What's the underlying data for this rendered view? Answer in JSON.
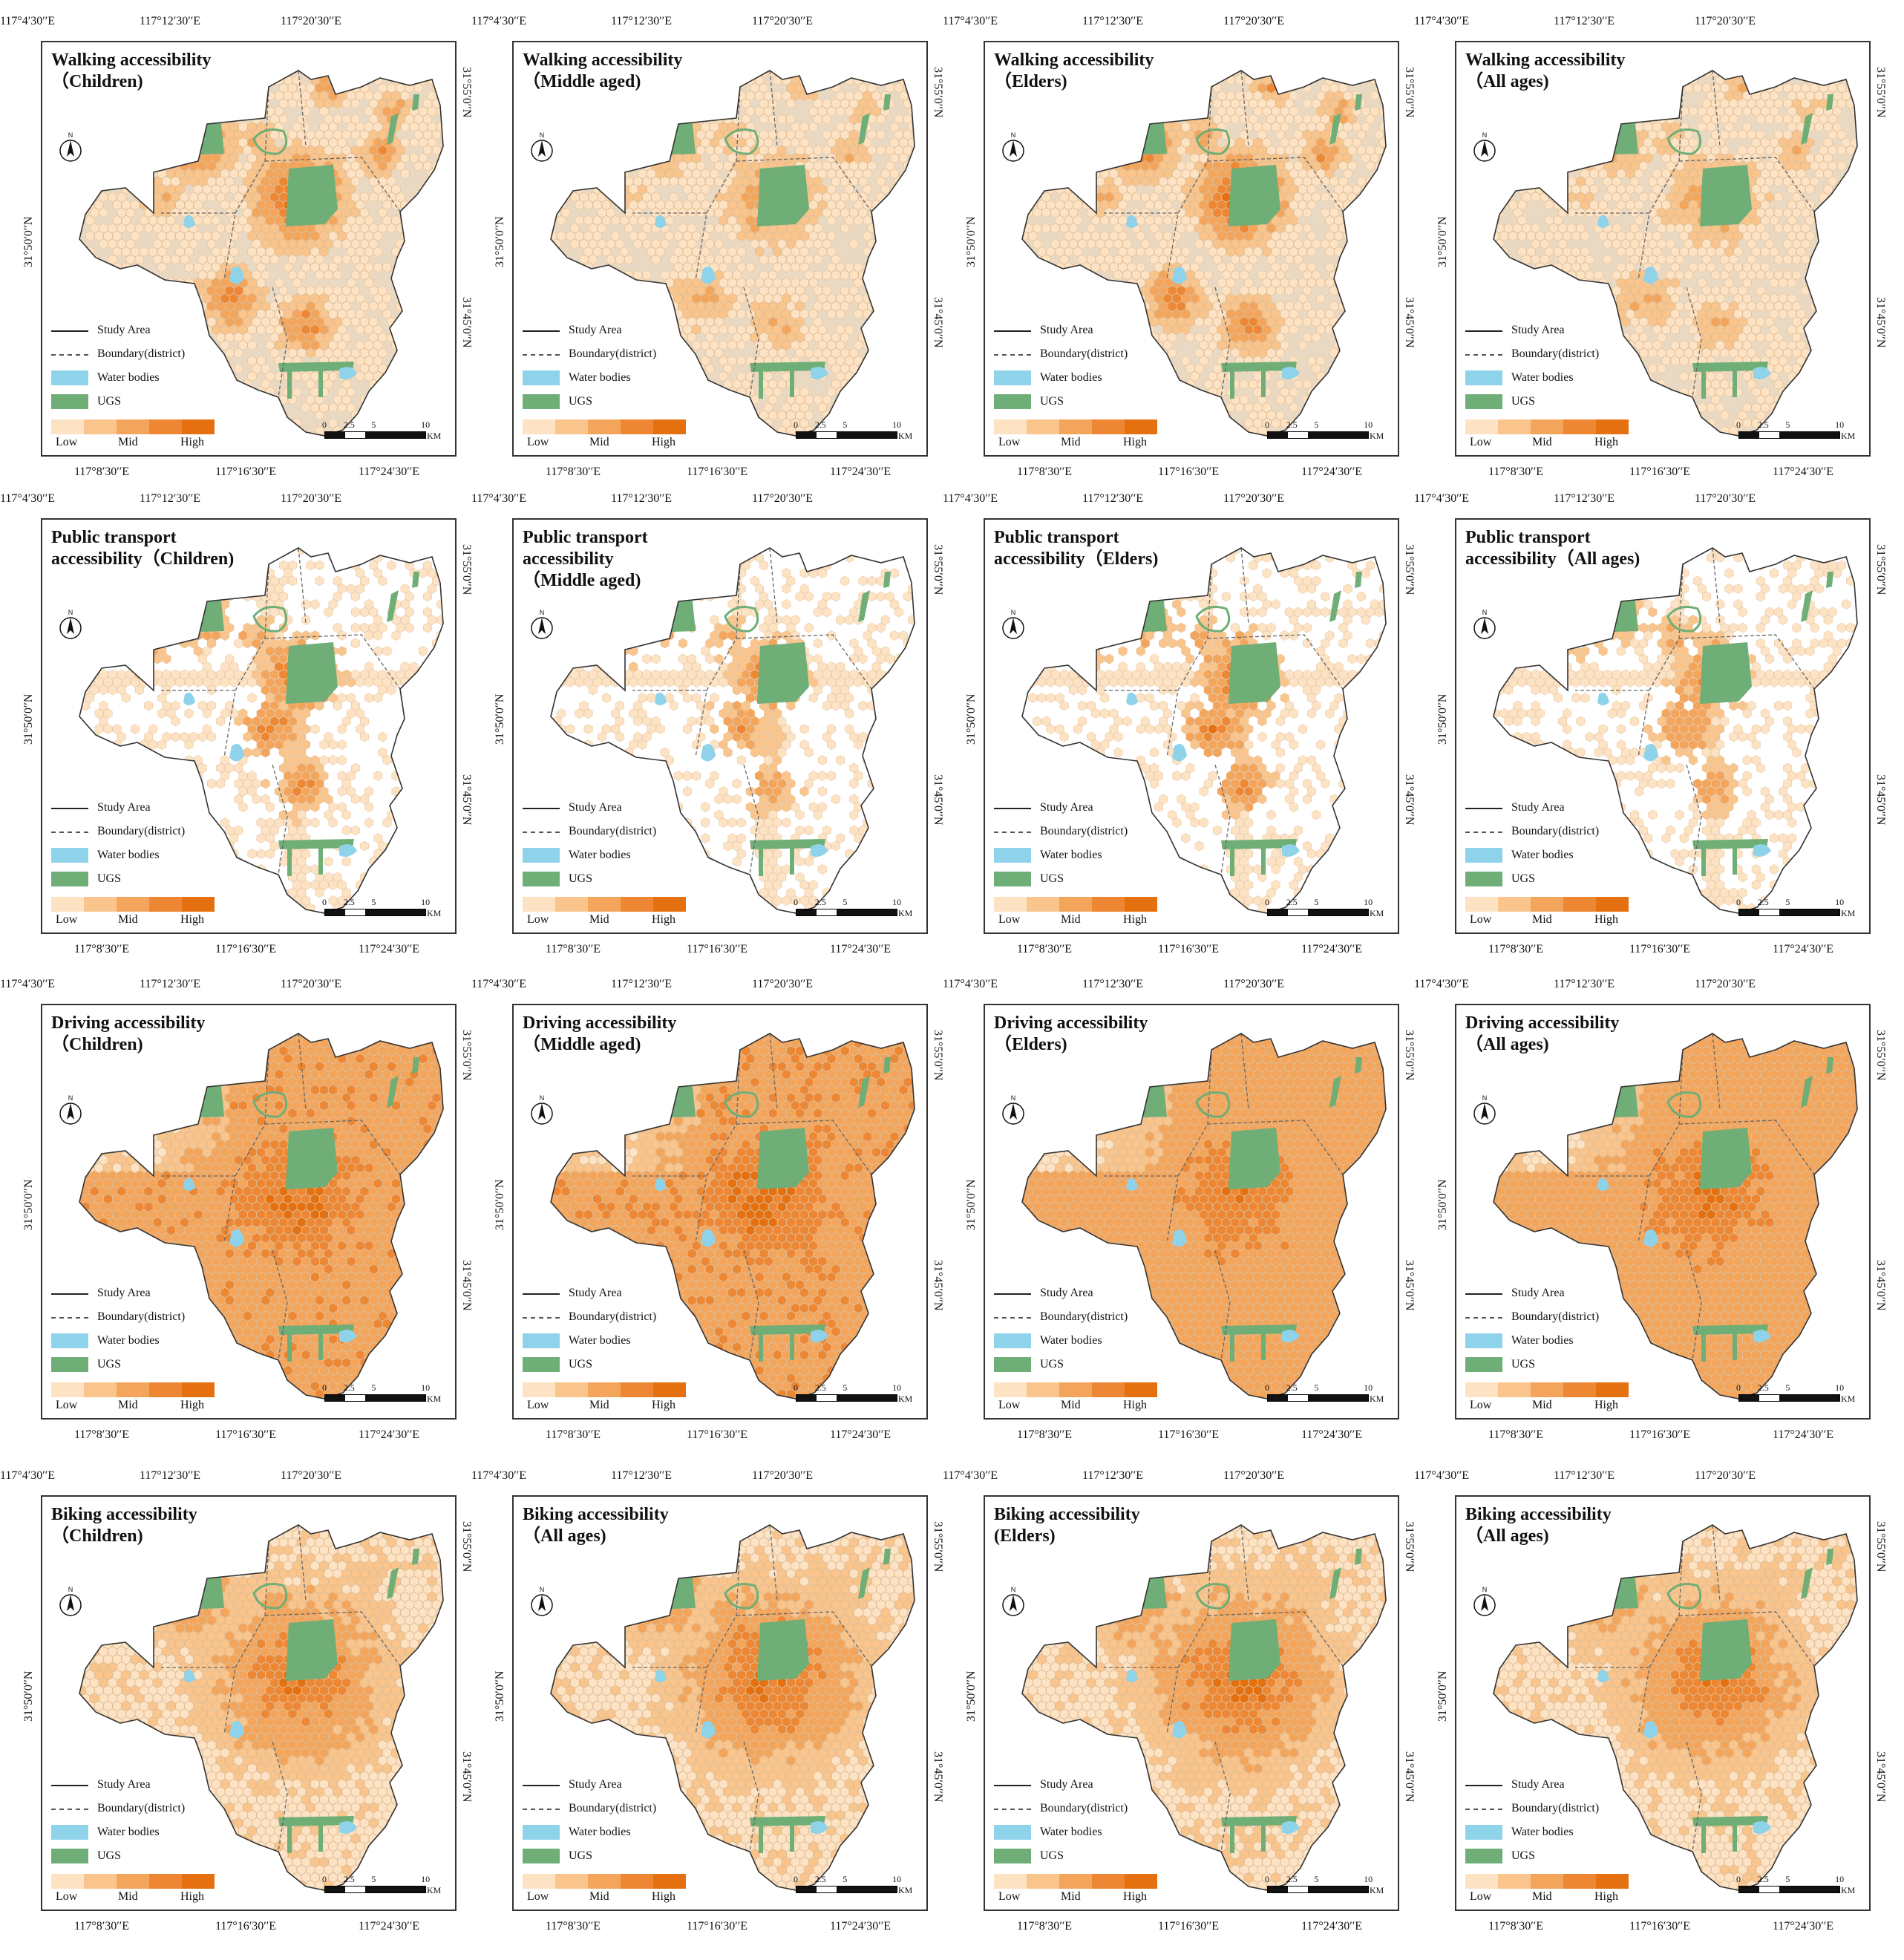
{
  "top_ticks": [
    "117°4′30′′E",
    "117°12′30′′E",
    "117°20′30′′E"
  ],
  "bottom_ticks": [
    "117°8′30′′E",
    "117°16′30′′E",
    "117°24′30′′E"
  ],
  "left_tick": "31°50′0′′N",
  "right_ticks": [
    "31°55′0′′N",
    "31°45′0′′N"
  ],
  "legend": {
    "study_area": "Study Area",
    "boundary": "Boundary(district)",
    "water": "Water bodies",
    "ugs": "UGS",
    "low": "Low",
    "mid": "Mid",
    "high": "High"
  },
  "scale": {
    "zero": "0",
    "a": "2.5",
    "b": "5",
    "c": "10",
    "unit": "KM"
  },
  "colors": {
    "ramp": [
      "#fde3c4",
      "#f9c58c",
      "#f4a55c",
      "#ee8733",
      "#e5700f"
    ],
    "water": "#8fd3ea",
    "ugs": "#6fae76",
    "base": "#ead9c2"
  },
  "panels": [
    {
      "title": "Walking accessibility\n（Children)",
      "mode": "walking",
      "intensity": 0.78
    },
    {
      "title": "Walking accessibility\n（Middle aged)",
      "mode": "walking",
      "intensity": 0.5
    },
    {
      "title": "Walking accessibility\n（Elders)",
      "mode": "walking",
      "intensity": 0.78
    },
    {
      "title": "Walking accessibility\n（All ages)",
      "mode": "walking",
      "intensity": 0.48
    },
    {
      "title": "Public transport\naccessibility（Children)",
      "mode": "transit",
      "intensity": 0.7
    },
    {
      "title": "Public transport\naccessibility\n（Middle aged)",
      "mode": "transit",
      "intensity": 0.6
    },
    {
      "title": "Public transport\naccessibility（Elders)",
      "mode": "transit",
      "intensity": 0.72
    },
    {
      "title": "Public transport\naccessibility（All ages)",
      "mode": "transit",
      "intensity": 0.62
    },
    {
      "title": "Driving accessibility\n（Children)",
      "mode": "driving",
      "intensity": 0.78
    },
    {
      "title": "Driving accessibility\n（Middle aged)",
      "mode": "driving",
      "intensity": 0.8
    },
    {
      "title": "Driving accessibility\n（Elders)",
      "mode": "driving",
      "intensity": 0.72
    },
    {
      "title": "Driving accessibility\n（All ages)",
      "mode": "driving",
      "intensity": 0.74
    },
    {
      "title": "Biking accessibility\n（Children)",
      "mode": "biking",
      "intensity": 0.66
    },
    {
      "title": "Biking accessibility\n（All ages)",
      "mode": "biking",
      "intensity": 0.7
    },
    {
      "title": "Biking accessibility\n(Elders)",
      "mode": "biking",
      "intensity": 0.72
    },
    {
      "title": "Biking accessibility\n（All ages)",
      "mode": "biking",
      "intensity": 0.66
    }
  ]
}
